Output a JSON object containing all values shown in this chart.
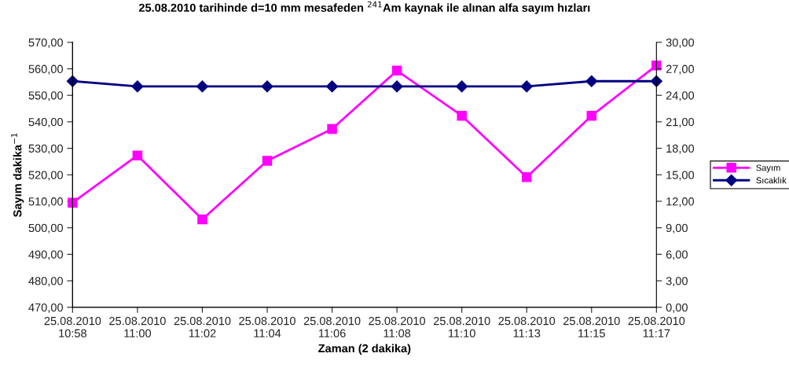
{
  "chart_data": {
    "type": "line",
    "title": "25.08.2010 tarihinde d=10 mm mesafeden $^{241}$Am kaynak ile alınan alfa sayım hızları",
    "xlabel": "Zaman (2 dakika)",
    "ylabel": "Sayım dakika$^{−1}$",
    "categories": [
      "25.08.2010\n10:58",
      "25.08.2010\n11:00",
      "25.08.2010\n11:02",
      "25.08.2010\n11:04",
      "25.08.2010\n11:06",
      "25.08.2010\n11:08",
      "25.08.2010\n11:10",
      "25.08.2010\n11:13",
      "25.08.2010\n11:15",
      "25.08.2010\n11:17"
    ],
    "series": [
      {
        "name": "Sayım",
        "color": "#ff00ff",
        "marker": "square",
        "values": [
          509.5,
          527.3,
          503.2,
          525.3,
          537.3,
          559.3,
          542.3,
          519.1,
          542.3,
          561.3
        ]
      },
      {
        "name": "Sıcaklık",
        "color": "#000080",
        "marker": "diamond",
        "axis": "y2",
        "values": [
          25.6,
          25.0,
          25.0,
          25.0,
          25.0,
          25.0,
          25.0,
          25.0,
          25.6,
          25.6
        ]
      }
    ],
    "ylim": [
      470,
      570
    ],
    "yticks": [
      {
        "value": 470,
        "label": "470,00"
      },
      {
        "value": 480,
        "label": "480,00"
      },
      {
        "value": 490,
        "label": "490,00"
      },
      {
        "value": 500,
        "label": "500,00"
      },
      {
        "value": 510,
        "label": "510,00"
      },
      {
        "value": 520,
        "label": "520,00"
      },
      {
        "value": 530,
        "label": "530,00"
      },
      {
        "value": 540,
        "label": "540,00"
      },
      {
        "value": 550,
        "label": "550,00"
      },
      {
        "value": 560,
        "label": "560,00"
      },
      {
        "value": 570,
        "label": "570,00"
      }
    ],
    "y2lim": [
      0,
      30
    ],
    "y2ticks": [
      {
        "value": 0,
        "label": "0,00"
      },
      {
        "value": 3,
        "label": "3,00"
      },
      {
        "value": 6,
        "label": "6,00"
      },
      {
        "value": 9,
        "label": "9,00"
      },
      {
        "value": 12,
        "label": "12,00"
      },
      {
        "value": 15,
        "label": "15,00"
      },
      {
        "value": 18,
        "label": "18,00"
      },
      {
        "value": 21,
        "label": "21,00"
      },
      {
        "value": 24,
        "label": "24,00"
      },
      {
        "value": 27,
        "label": "27,00"
      },
      {
        "value": 30,
        "label": "30,00"
      }
    ],
    "grid": false,
    "legend": "right"
  }
}
